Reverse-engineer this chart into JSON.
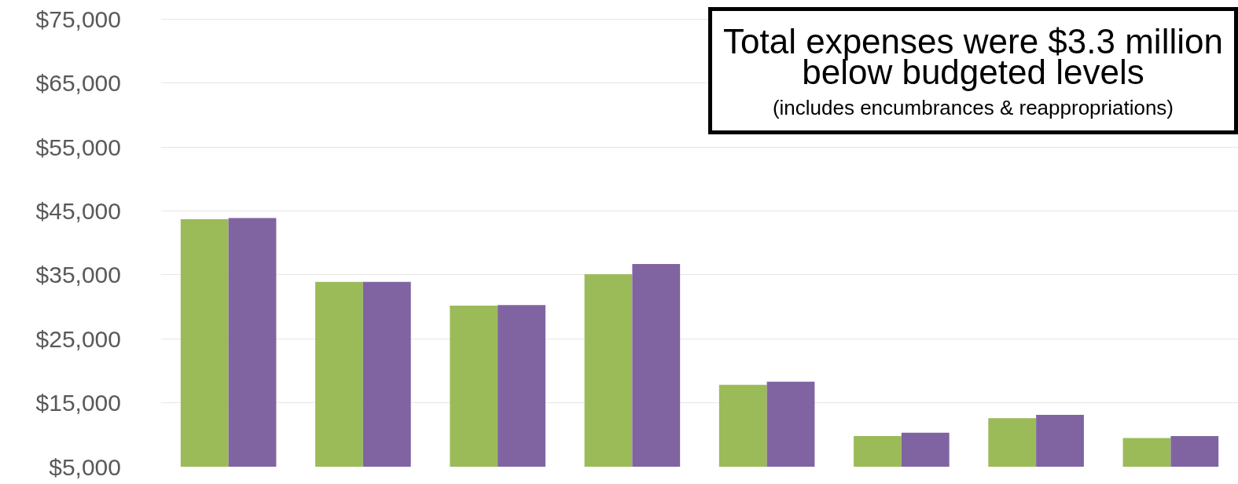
{
  "chart_data": {
    "type": "bar",
    "categories": [
      null,
      null,
      null,
      null,
      null,
      null,
      null,
      null
    ],
    "series": [
      {
        "color": "#9bbb59",
        "values": [
          43700,
          33900,
          30200,
          35100,
          17800,
          9800,
          12600,
          9500
        ]
      },
      {
        "color": "#8064a2",
        "values": [
          43900,
          33900,
          30300,
          36700,
          18300,
          10300,
          13100,
          9800
        ]
      }
    ],
    "ylim": [
      5000,
      78000
    ],
    "yticks": [
      {
        "value": 5000,
        "label": "$5,000"
      },
      {
        "value": 15000,
        "label": "$15,000"
      },
      {
        "value": 25000,
        "label": "$25,000"
      },
      {
        "value": 35000,
        "label": "$35,000"
      },
      {
        "value": 45000,
        "label": "$45,000"
      },
      {
        "value": 55000,
        "label": "$55,000"
      },
      {
        "value": 65000,
        "label": "$65,000"
      },
      {
        "value": 75000,
        "label": "$75,000"
      }
    ],
    "grid": "y",
    "annotations": [
      "Total expenses were $3.3 million below budgeted levels",
      "(includes encumbrances & reappropriations)"
    ]
  }
}
